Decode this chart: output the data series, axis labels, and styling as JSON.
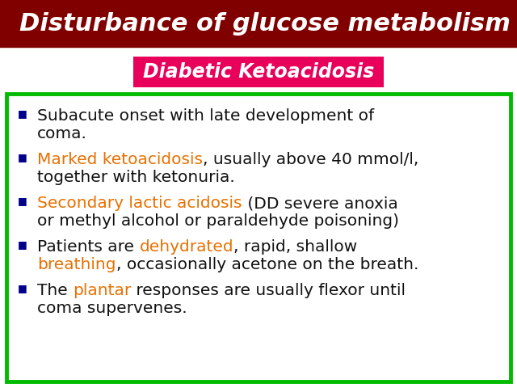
{
  "title": "Disturbance of glucose metabolism",
  "title_bg": "#800000",
  "title_color": "#FFFFFF",
  "subtitle": "Diabetic Ketoacidosis",
  "subtitle_bg": "#E8005A",
  "subtitle_color": "#FFFFFF",
  "box_border_color": "#00BB00",
  "background_color": "#FFFFFF",
  "bullet_color": "#00008B",
  "bullet_points": [
    {
      "segments": [
        {
          "text": "Subacute onset with late development of\ncoma.",
          "color": "#111111"
        }
      ]
    },
    {
      "segments": [
        {
          "text": "Marked ketoacidosis",
          "color": "#E87000"
        },
        {
          "text": ", usually above 40 mmol/l,\ntogether with ketonuria.",
          "color": "#111111"
        }
      ]
    },
    {
      "segments": [
        {
          "text": "Secondary lactic acidosis",
          "color": "#E87000"
        },
        {
          "text": " (DD severe anoxia\nor methyl alcohol or paraldehyde poisoning)",
          "color": "#111111"
        }
      ]
    },
    {
      "segments": [
        {
          "text": "Patients are ",
          "color": "#111111"
        },
        {
          "text": "dehydrated",
          "color": "#E87000"
        },
        {
          "text": ", rapid, shallow\n",
          "color": "#111111"
        },
        {
          "text": "breathing",
          "color": "#E87000"
        },
        {
          "text": ", occasionally acetone on the breath.",
          "color": "#111111"
        }
      ]
    },
    {
      "segments": [
        {
          "text": "The ",
          "color": "#111111"
        },
        {
          "text": "plantar",
          "color": "#E87000"
        },
        {
          "text": " responses are usually flexor until\ncoma supervenes.",
          "color": "#111111"
        }
      ]
    }
  ],
  "figsize": [
    6.4,
    4.8
  ],
  "dpi": 100
}
